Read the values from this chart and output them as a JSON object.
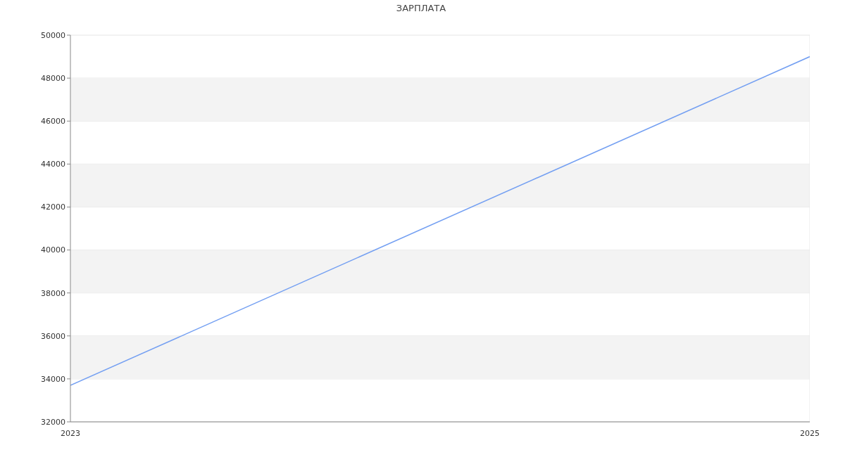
{
  "chart_data": {
    "type": "line",
    "title": "ЗАРПЛАТА",
    "x": [
      2023,
      2025
    ],
    "xlim": [
      2023,
      2025
    ],
    "xticks": [
      2023,
      2025
    ],
    "ylim": [
      32000,
      50000
    ],
    "yticks": [
      32000,
      34000,
      36000,
      38000,
      40000,
      42000,
      44000,
      46000,
      48000,
      50000
    ],
    "series": [
      {
        "color": "#739ff2",
        "values": [
          33700,
          49000
        ]
      }
    ],
    "bands": [
      {
        "axis": "y",
        "from": 34000,
        "to": 36000,
        "color": "#f3f3f3"
      },
      {
        "axis": "y",
        "from": 38000,
        "to": 40000,
        "color": "#f3f3f3"
      },
      {
        "axis": "y",
        "from": 42000,
        "to": 44000,
        "color": "#f3f3f3"
      },
      {
        "axis": "y",
        "from": 46000,
        "to": 48000,
        "color": "#f3f3f3"
      }
    ],
    "grid": "y",
    "marker": "none",
    "line_style": "solid"
  }
}
